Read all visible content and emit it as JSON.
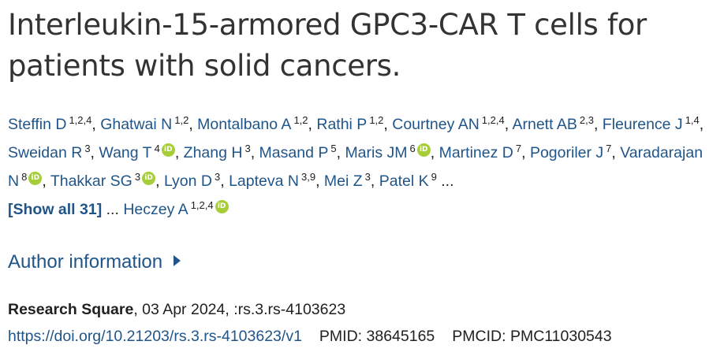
{
  "title": "Interleukin-15-armored GPC3-CAR T cells for patients with solid cancers.",
  "authors": [
    {
      "name": "Steffin D",
      "aff": "1,2,4",
      "orcid": false
    },
    {
      "name": "Ghatwai N",
      "aff": "1,2",
      "orcid": false
    },
    {
      "name": "Montalbano A",
      "aff": "1,2",
      "orcid": false
    },
    {
      "name": "Rathi P",
      "aff": "1,2",
      "orcid": false
    },
    {
      "name": "Courtney AN",
      "aff": "1,2,4",
      "orcid": false
    },
    {
      "name": "Arnett AB",
      "aff": "2,3",
      "orcid": false
    },
    {
      "name": "Fleurence J",
      "aff": "1,4",
      "orcid": false
    },
    {
      "name": "Sweidan R",
      "aff": "3",
      "orcid": false
    },
    {
      "name": "Wang T",
      "aff": "4",
      "orcid": true
    },
    {
      "name": "Zhang H",
      "aff": "3",
      "orcid": false
    },
    {
      "name": "Masand P",
      "aff": "5",
      "orcid": false
    },
    {
      "name": "Maris JM",
      "aff": "6",
      "orcid": true
    },
    {
      "name": "Martinez D",
      "aff": "7",
      "orcid": false
    },
    {
      "name": "Pogoriler J",
      "aff": "7",
      "orcid": false
    },
    {
      "name": "Varadarajan N",
      "aff": "8",
      "orcid": true
    },
    {
      "name": "Thakkar SG",
      "aff": "3",
      "orcid": true
    },
    {
      "name": "Lyon D",
      "aff": "3",
      "orcid": false
    },
    {
      "name": "Lapteva N",
      "aff": "3,9",
      "orcid": false
    },
    {
      "name": "Mei Z",
      "aff": "3",
      "orcid": false
    },
    {
      "name": "Patel K",
      "aff": "9",
      "orcid": false
    }
  ],
  "ellipsis": "...",
  "show_all_label": "[Show all 31]",
  "last_author": {
    "name": "Heczey A",
    "aff": "1,2,4",
    "orcid": true
  },
  "orcid_label": "iD",
  "author_info_label": "Author information",
  "citation": {
    "journal": "Research Square",
    "rest": ", 03 Apr 2024, :rs.3.rs-4103623"
  },
  "doi": "https://doi.org/10.21203/rs.3.rs-4103623/v1",
  "pmid": "PMID: 38645165",
  "pmcid": "PMCID: PMC11030543",
  "colors": {
    "link": "#20558a",
    "orcid": "#a6ce39",
    "title": "#333333"
  }
}
